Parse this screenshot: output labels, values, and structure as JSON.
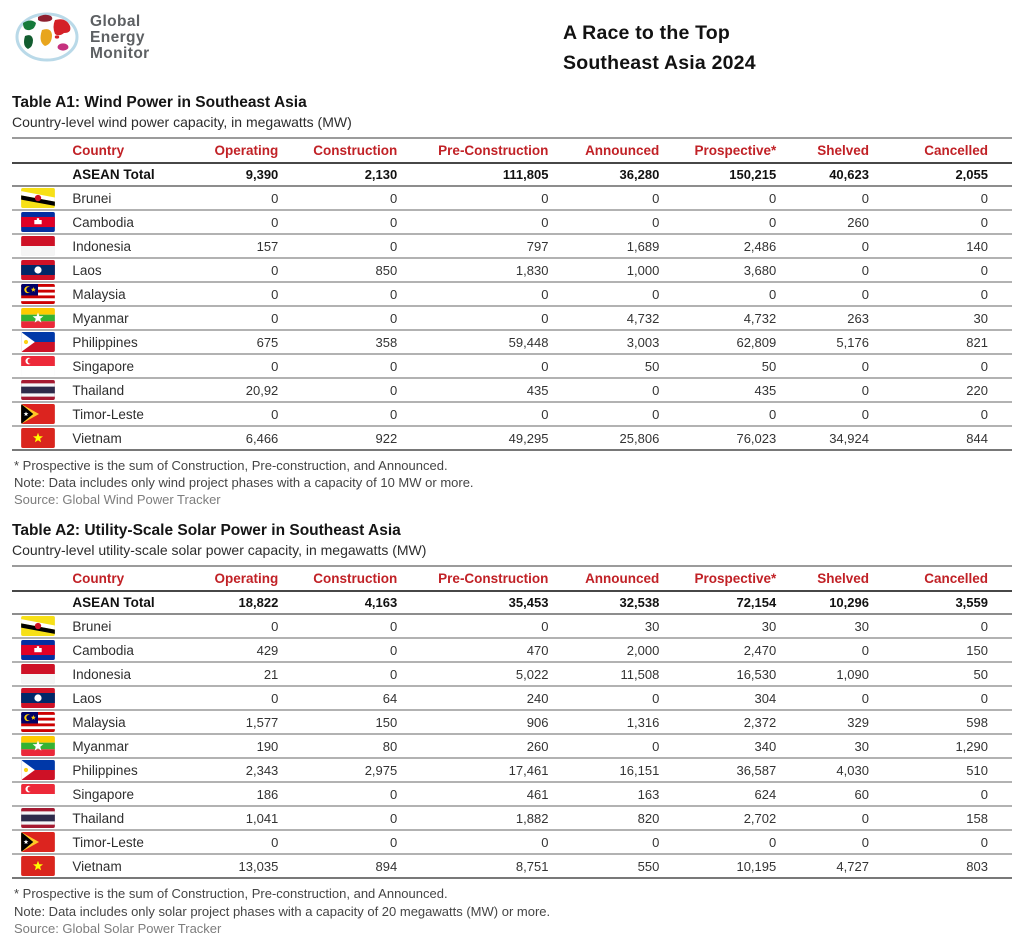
{
  "brand": {
    "lines": [
      "Global",
      "Energy",
      "Monitor"
    ]
  },
  "header": {
    "title_line1": "A Race to the Top",
    "title_line2": "Southeast Asia 2024"
  },
  "colors": {
    "column_header_red": "#c12126",
    "logo_outline_blue": "#b9d9e8",
    "body_text": "#1b1b1b"
  },
  "icons": {
    "logo": "globe-logo-icon",
    "flags": [
      "brunei-flag",
      "cambodia-flag",
      "indonesia-flag",
      "laos-flag",
      "malaysia-flag",
      "myanmar-flag",
      "philippines-flag",
      "singapore-flag",
      "thailand-flag",
      "timor-leste-flag",
      "vietnam-flag"
    ]
  },
  "tables": [
    {
      "title": "Table A1: Wind Power in Southeast Asia",
      "subtitle": "Country-level wind power capacity, in megawatts (MW)",
      "columns": [
        "Country",
        "Operating",
        "Construction",
        "Pre-Construction",
        "Announced",
        "Prospective*",
        "Shelved",
        "Cancelled"
      ],
      "total": {
        "label": "ASEAN Total",
        "values": [
          "9,390",
          "2,130",
          "111,805",
          "36,280",
          "150,215",
          "40,623",
          "2,055"
        ]
      },
      "rows": [
        {
          "flag": "bn",
          "country": "Brunei",
          "values": [
            "0",
            "0",
            "0",
            "0",
            "0",
            "0",
            "0"
          ]
        },
        {
          "flag": "kh",
          "country": "Cambodia",
          "values": [
            "0",
            "0",
            "0",
            "0",
            "0",
            "260",
            "0"
          ]
        },
        {
          "flag": "id",
          "country": "Indonesia",
          "values": [
            "157",
            "0",
            "797",
            "1,689",
            "2,486",
            "0",
            "140"
          ]
        },
        {
          "flag": "la",
          "country": "Laos",
          "values": [
            "0",
            "850",
            "1,830",
            "1,000",
            "3,680",
            "0",
            "0"
          ]
        },
        {
          "flag": "my",
          "country": "Malaysia",
          "values": [
            "0",
            "0",
            "0",
            "0",
            "0",
            "0",
            "0"
          ]
        },
        {
          "flag": "mm",
          "country": "Myanmar",
          "values": [
            "0",
            "0",
            "0",
            "4,732",
            "4,732",
            "263",
            "30"
          ]
        },
        {
          "flag": "ph",
          "country": "Philippines",
          "values": [
            "675",
            "358",
            "59,448",
            "3,003",
            "62,809",
            "5,176",
            "821"
          ]
        },
        {
          "flag": "sg",
          "country": "Singapore",
          "values": [
            "0",
            "0",
            "0",
            "50",
            "50",
            "0",
            "0"
          ]
        },
        {
          "flag": "th",
          "country": "Thailand",
          "values": [
            "20,92",
            "0",
            "435",
            "0",
            "435",
            "0",
            "220"
          ]
        },
        {
          "flag": "tl",
          "country": "Timor-Leste",
          "values": [
            "0",
            "0",
            "0",
            "0",
            "0",
            "0",
            "0"
          ]
        },
        {
          "flag": "vn",
          "country": "Vietnam",
          "values": [
            "6,466",
            "922",
            "49,295",
            "25,806",
            "76,023",
            "34,924",
            "844"
          ]
        }
      ],
      "footnotes": [
        "* Prospective is the sum of Construction, Pre-construction, and Announced.",
        "Note: Data includes only wind project phases with a capacity of 10 MW or more."
      ],
      "source": "Source: Global Wind Power Tracker"
    },
    {
      "title": "Table A2: Utility-Scale Solar Power in Southeast Asia",
      "subtitle": "Country-level utility-scale solar power capacity, in megawatts (MW)",
      "columns": [
        "Country",
        "Operating",
        "Construction",
        "Pre-Construction",
        "Announced",
        "Prospective*",
        "Shelved",
        "Cancelled"
      ],
      "total": {
        "label": "ASEAN Total",
        "values": [
          "18,822",
          "4,163",
          "35,453",
          "32,538",
          "72,154",
          "10,296",
          "3,559"
        ]
      },
      "rows": [
        {
          "flag": "bn",
          "country": "Brunei",
          "values": [
            "0",
            "0",
            "0",
            "30",
            "30",
            "30",
            "0"
          ]
        },
        {
          "flag": "kh",
          "country": "Cambodia",
          "values": [
            "429",
            "0",
            "470",
            "2,000",
            "2,470",
            "0",
            "150"
          ]
        },
        {
          "flag": "id",
          "country": "Indonesia",
          "values": [
            "21",
            "0",
            "5,022",
            "11,508",
            "16,530",
            "1,090",
            "50"
          ]
        },
        {
          "flag": "la",
          "country": "Laos",
          "values": [
            "0",
            "64",
            "240",
            "0",
            "304",
            "0",
            "0"
          ]
        },
        {
          "flag": "my",
          "country": "Malaysia",
          "values": [
            "1,577",
            "150",
            "906",
            "1,316",
            "2,372",
            "329",
            "598"
          ]
        },
        {
          "flag": "mm",
          "country": "Myanmar",
          "values": [
            "190",
            "80",
            "260",
            "0",
            "340",
            "30",
            "1,290"
          ]
        },
        {
          "flag": "ph",
          "country": "Philippines",
          "values": [
            "2,343",
            "2,975",
            "17,461",
            "16,151",
            "36,587",
            "4,030",
            "510"
          ]
        },
        {
          "flag": "sg",
          "country": "Singapore",
          "values": [
            "186",
            "0",
            "461",
            "163",
            "624",
            "60",
            "0"
          ]
        },
        {
          "flag": "th",
          "country": "Thailand",
          "values": [
            "1,041",
            "0",
            "1,882",
            "820",
            "2,702",
            "0",
            "158"
          ]
        },
        {
          "flag": "tl",
          "country": "Timor-Leste",
          "values": [
            "0",
            "0",
            "0",
            "0",
            "0",
            "0",
            "0"
          ]
        },
        {
          "flag": "vn",
          "country": "Vietnam",
          "values": [
            "13,035",
            "894",
            "8,751",
            "550",
            "10,195",
            "4,727",
            "803"
          ]
        }
      ],
      "footnotes": [
        "* Prospective is the sum of Construction, Pre-construction, and Announced.",
        "Note: Data includes only solar project phases with a capacity of 20 megawatts (MW) or more.",
        "Source: Global Solar Power Tracker"
      ],
      "source": "Source: Global Solar Power Tracker"
    }
  ]
}
